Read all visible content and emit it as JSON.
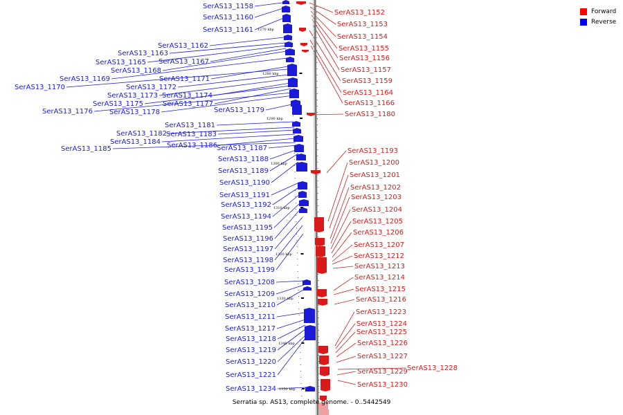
{
  "caption": "Serratia sp. AS13, complete genome. - 0..5442549",
  "legend": [
    {
      "label": "Forward",
      "color": "#ff0000"
    },
    {
      "label": "Reverse",
      "color": "#0000ff"
    }
  ],
  "colors": {
    "forward": "#d81a1a",
    "reverse": "#1a1ad8",
    "backbone": "#888888"
  },
  "ticks": [
    "1270 kbp",
    "1280 kbp",
    "1290 kbp",
    "1300 kbp",
    "1310 kbp",
    "1320 kbp",
    "1330 kbp",
    "1340 kbp",
    "1350 kbp"
  ],
  "reverse_genes": [
    "SerAS13_1158",
    "SerAS13_1160",
    "SerAS13_1161",
    "SerAS13_1162",
    "SerAS13_1163",
    "SerAS13_1165",
    "SerAS13_1167",
    "SerAS13_1168",
    "SerAS13_1169",
    "SerAS13_1171",
    "SerAS13_1170",
    "SerAS13_1172",
    "SerAS13_1173",
    "SerAS13_1174",
    "SerAS13_1175",
    "SerAS13_1177",
    "SerAS13_1176",
    "SerAS13_1178",
    "SerAS13_1179",
    "SerAS13_1181",
    "SerAS13_1182",
    "SerAS13_1183",
    "SerAS13_1184",
    "SerAS13_1186",
    "SerAS13_1185",
    "SerAS13_1187",
    "SerAS13_1188",
    "SerAS13_1189",
    "SerAS13_1190",
    "SerAS13_1191",
    "SerAS13_1192",
    "SerAS13_1194",
    "SerAS13_1195",
    "SerAS13_1196",
    "SerAS13_1197",
    "SerAS13_1198",
    "SerAS13_1199",
    "SerAS13_1208",
    "SerAS13_1209",
    "SerAS13_1210",
    "SerAS13_1211",
    "SerAS13_1217",
    "SerAS13_1218",
    "SerAS13_1219",
    "SerAS13_1220",
    "SerAS13_1221",
    "SerAS13_1234"
  ],
  "forward_genes": [
    "SerAS13_1152",
    "SerAS13_1153",
    "SerAS13_1154",
    "SerAS13_1155",
    "SerAS13_1156",
    "SerAS13_1157",
    "SerAS13_1159",
    "SerAS13_1164",
    "SerAS13_1166",
    "SerAS13_1180",
    "SerAS13_1193",
    "SerAS13_1200",
    "SerAS13_1201",
    "SerAS13_1202",
    "SerAS13_1203",
    "SerAS13_1204",
    "SerAS13_1205",
    "SerAS13_1206",
    "SerAS13_1207",
    "SerAS13_1212",
    "SerAS13_1213",
    "SerAS13_1214",
    "SerAS13_1215",
    "SerAS13_1216",
    "SerAS13_1223",
    "SerAS13_1224",
    "SerAS13_1225",
    "SerAS13_1226",
    "SerAS13_1227",
    "SerAS13_1228",
    "SerAS13_1229",
    "SerAS13_1230"
  ]
}
